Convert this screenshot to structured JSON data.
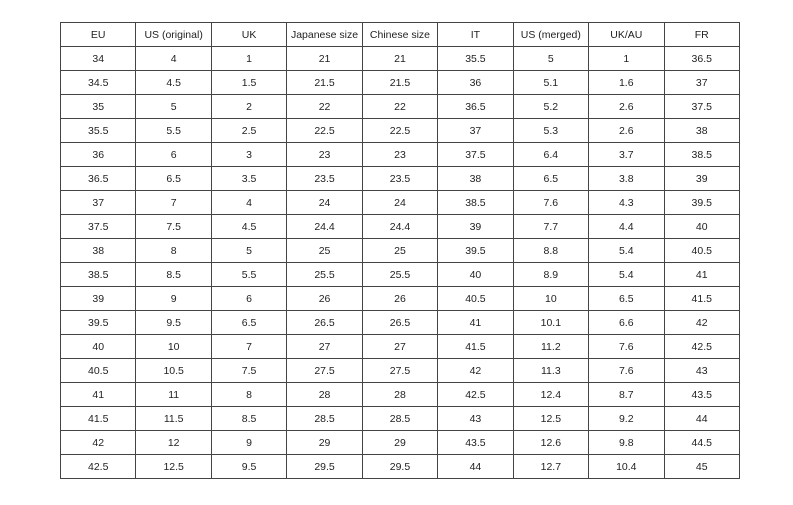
{
  "colors": {
    "background": "#ffffff",
    "border": "#444444",
    "text": "#1f1f1f"
  },
  "table": {
    "columns": [
      "EU",
      "US (original)",
      "UK",
      "Japanese size",
      "Chinese size",
      "IT",
      "US (merged)",
      "UK/AU",
      "FR"
    ],
    "rows": [
      [
        "34",
        "4",
        "1",
        "21",
        "21",
        "35.5",
        "5",
        "1",
        "36.5"
      ],
      [
        "34.5",
        "4.5",
        "1.5",
        "21.5",
        "21.5",
        "36",
        "5.1",
        "1.6",
        "37"
      ],
      [
        "35",
        "5",
        "2",
        "22",
        "22",
        "36.5",
        "5.2",
        "2.6",
        "37.5"
      ],
      [
        "35.5",
        "5.5",
        "2.5",
        "22.5",
        "22.5",
        "37",
        "5.3",
        "2.6",
        "38"
      ],
      [
        "36",
        "6",
        "3",
        "23",
        "23",
        "37.5",
        "6.4",
        "3.7",
        "38.5"
      ],
      [
        "36.5",
        "6.5",
        "3.5",
        "23.5",
        "23.5",
        "38",
        "6.5",
        "3.8",
        "39"
      ],
      [
        "37",
        "7",
        "4",
        "24",
        "24",
        "38.5",
        "7.6",
        "4.3",
        "39.5"
      ],
      [
        "37.5",
        "7.5",
        "4.5",
        "24.4",
        "24.4",
        "39",
        "7.7",
        "4.4",
        "40"
      ],
      [
        "38",
        "8",
        "5",
        "25",
        "25",
        "39.5",
        "8.8",
        "5.4",
        "40.5"
      ],
      [
        "38.5",
        "8.5",
        "5.5",
        "25.5",
        "25.5",
        "40",
        "8.9",
        "5.4",
        "41"
      ],
      [
        "39",
        "9",
        "6",
        "26",
        "26",
        "40.5",
        "10",
        "6.5",
        "41.5"
      ],
      [
        "39.5",
        "9.5",
        "6.5",
        "26.5",
        "26.5",
        "41",
        "10.1",
        "6.6",
        "42"
      ],
      [
        "40",
        "10",
        "7",
        "27",
        "27",
        "41.5",
        "11.2",
        "7.6",
        "42.5"
      ],
      [
        "40.5",
        "10.5",
        "7.5",
        "27.5",
        "27.5",
        "42",
        "11.3",
        "7.6",
        "43"
      ],
      [
        "41",
        "11",
        "8",
        "28",
        "28",
        "42.5",
        "12.4",
        "8.7",
        "43.5"
      ],
      [
        "41.5",
        "11.5",
        "8.5",
        "28.5",
        "28.5",
        "43",
        "12.5",
        "9.2",
        "44"
      ],
      [
        "42",
        "12",
        "9",
        "29",
        "29",
        "43.5",
        "12.6",
        "9.8",
        "44.5"
      ],
      [
        "42.5",
        "12.5",
        "9.5",
        "29.5",
        "29.5",
        "44",
        "12.7",
        "10.4",
        "45"
      ]
    ]
  }
}
